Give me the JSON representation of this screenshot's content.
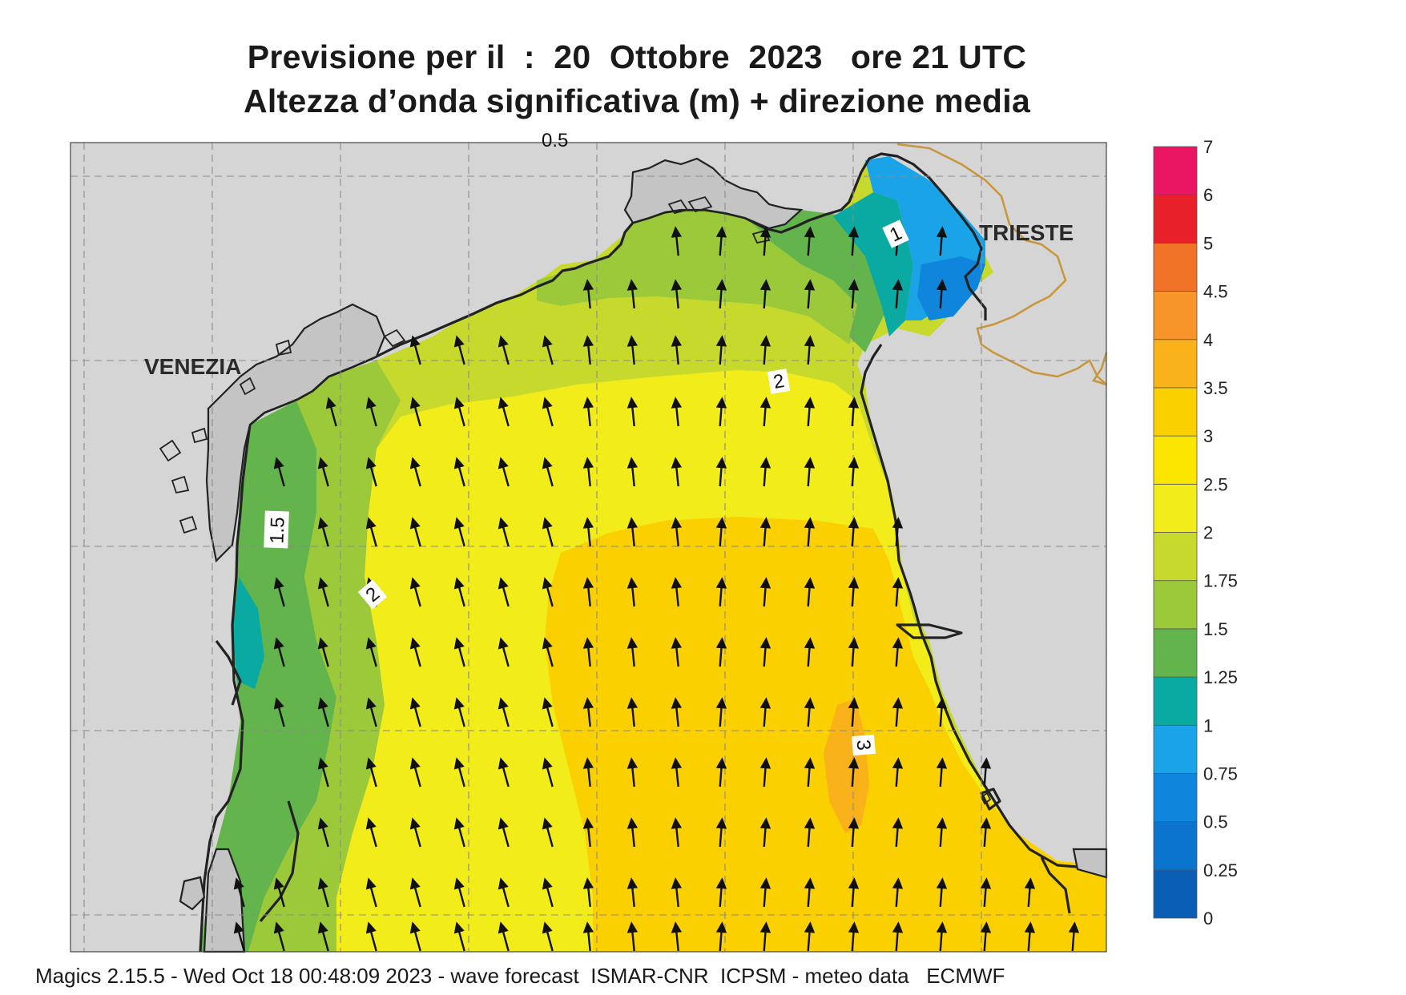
{
  "title": {
    "line1": "Previsione per il  :  20  Ottobre  2023   ore 21 UTC",
    "line2": "Altezza d’onda significativa (m) + direzione media"
  },
  "places": {
    "venezia": "VENEZIA",
    "trieste": "TRIESTE"
  },
  "contour_labels": {
    "top_cut": "0.5",
    "west_1_5": "1.5",
    "west_2": "2",
    "north_2": "2",
    "south_3": "3",
    "trieste_1": "1"
  },
  "legend": {
    "ticks": [
      "0",
      "0.25",
      "0.5",
      "0.75",
      "1",
      "1.25",
      "1.5",
      "1.75",
      "2",
      "2.5",
      "3",
      "3.5",
      "4",
      "4.5",
      "5",
      "6",
      "7"
    ],
    "colors": [
      "#0a5fb4",
      "#0b74cc",
      "#0f86dc",
      "#1aa3e6",
      "#0aa9a2",
      "#63b44c",
      "#9bc93a",
      "#c8d92e",
      "#f2ec1a",
      "#fce600",
      "#fbd000",
      "#f9b21a",
      "#f7942a",
      "#f07327",
      "#e8202a",
      "#ea1563"
    ]
  },
  "footer": "Magics 2.15.5 - Wed Oct 18 00:48:09 2023 - wave forecast  ISMAR-CNR  ICPSM - meteo data   ECMWF",
  "wave_direction": "north-northwest"
}
